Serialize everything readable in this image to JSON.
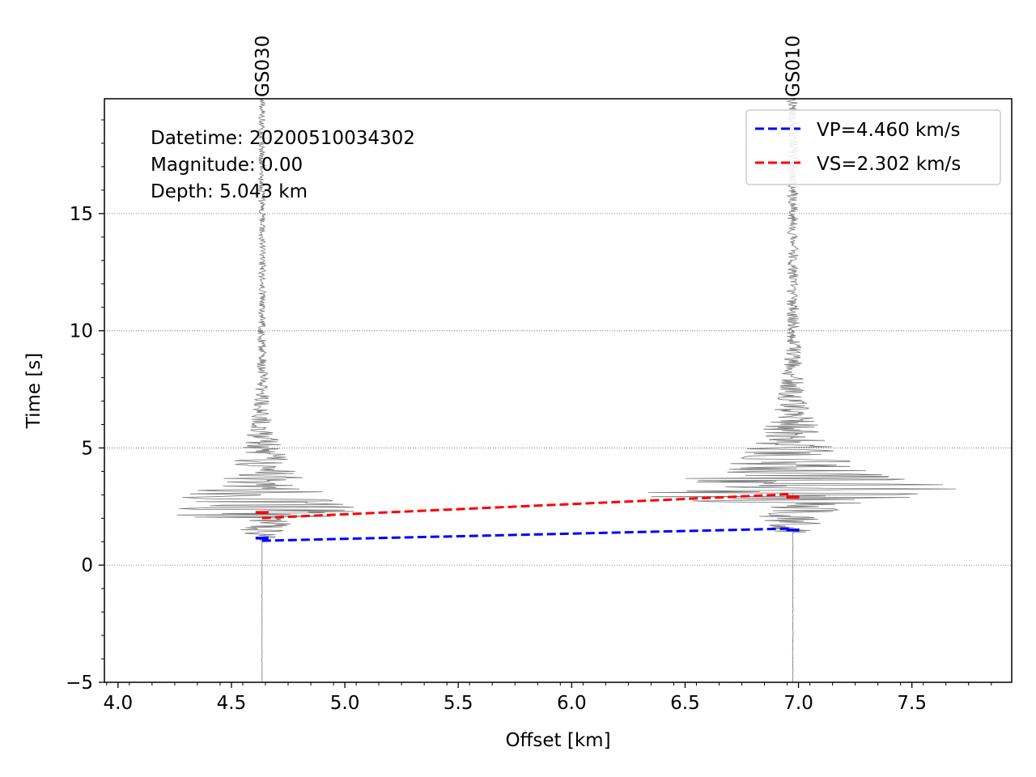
{
  "chart_data": {
    "type": "line",
    "xlabel": "Offset [km]",
    "ylabel": "Time [s]",
    "xlim": [
      3.94,
      7.94
    ],
    "ylim": [
      -5,
      19.9
    ],
    "x_ticks": [
      4.0,
      4.5,
      5.0,
      5.5,
      6.0,
      6.5,
      7.0,
      7.5
    ],
    "x_tick_labels": [
      "4.0",
      "4.5",
      "5.0",
      "5.5",
      "6.0",
      "6.5",
      "7.0",
      "7.5"
    ],
    "y_ticks": [
      -5,
      0,
      5,
      10,
      15
    ],
    "y_tick_labels": [
      "−5",
      "0",
      "5",
      "10",
      "15"
    ],
    "grid": "horizontal dotted",
    "legend_position": "top-right",
    "annotations": {
      "datetime": "Datetime: 20200510034302",
      "magnitude": "Magnitude: 0.00",
      "depth": "Depth: 5.043 km"
    },
    "stations": [
      {
        "name": "GS030",
        "offset": 4.635,
        "p_pick": 1.15,
        "s_pick": 2.25,
        "max_amp_km": 0.5
      },
      {
        "name": "GS010",
        "offset": 6.975,
        "p_pick": 1.5,
        "s_pick": 2.9,
        "max_amp_km": 0.78
      }
    ],
    "series": [
      {
        "name": "VP=4.460 km/s",
        "color": "#0000ff",
        "style": "dashed",
        "x": [
          4.635,
          6.975
        ],
        "y": [
          1.04,
          1.56
        ]
      },
      {
        "name": "VS=2.302 km/s",
        "color": "#ff0000",
        "style": "dashed",
        "x": [
          4.635,
          6.975
        ],
        "y": [
          2.01,
          3.03
        ]
      }
    ]
  }
}
